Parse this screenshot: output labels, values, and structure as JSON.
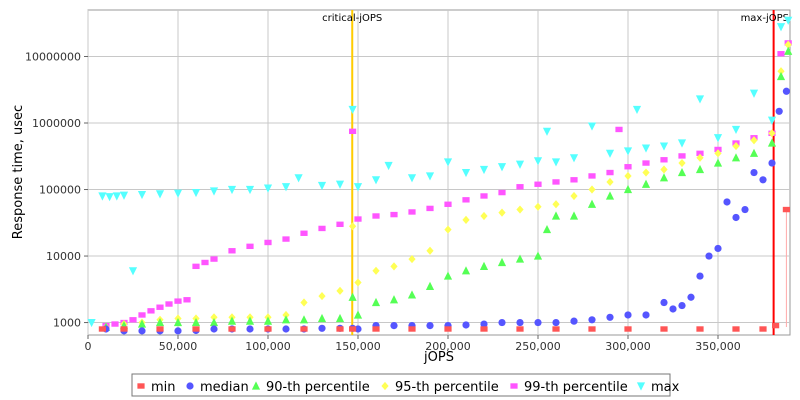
{
  "chart_data": {
    "type": "scatter",
    "title": "",
    "xlabel": "jOPS",
    "ylabel": "Response time, usec",
    "xlim": [
      0,
      390000
    ],
    "ylim": [
      650,
      50000000
    ],
    "yscale": "log",
    "grid": true,
    "legend_position": "bottom",
    "x_ticks": [
      {
        "value": 0,
        "label": "0"
      },
      {
        "value": 50000,
        "label": "50,000"
      },
      {
        "value": 100000,
        "label": "100,000"
      },
      {
        "value": 150000,
        "label": "150,000"
      },
      {
        "value": 200000,
        "label": "200,000"
      },
      {
        "value": 250000,
        "label": "250,000"
      },
      {
        "value": 300000,
        "label": "300,000"
      },
      {
        "value": 350000,
        "label": "350,000"
      }
    ],
    "y_ticks": [
      {
        "value": 1000,
        "label": "1000"
      },
      {
        "value": 10000,
        "label": "10000"
      },
      {
        "value": 100000,
        "label": "100000"
      },
      {
        "value": 1000000,
        "label": "1000000"
      },
      {
        "value": 10000000,
        "label": "10000000"
      }
    ],
    "vlines": [
      {
        "x": 146800,
        "label": "critical-jOPS",
        "color": "#ffcc00"
      },
      {
        "x": 380900,
        "label": "max-jOPS",
        "color": "#ff0000"
      }
    ],
    "colors": {
      "min": "#ff5555",
      "median": "#5555ff",
      "p90": "#55ff55",
      "p95": "#ffff55",
      "p99": "#ff55ff",
      "max": "#55ffff",
      "grid": "#c0c0c0"
    },
    "series": [
      {
        "name": "min",
        "shape": "square",
        "color": "#ff5555",
        "x": [
          8000,
          20000,
          40000,
          60000,
          80000,
          100000,
          120000,
          140000,
          147000,
          160000,
          180000,
          200000,
          220000,
          240000,
          260000,
          280000,
          300000,
          320000,
          340000,
          360000,
          375000,
          382000,
          388000
        ],
        "y": [
          800,
          800,
          800,
          800,
          800,
          800,
          800,
          800,
          800,
          800,
          800,
          800,
          800,
          800,
          800,
          800,
          800,
          800,
          800,
          800,
          800,
          900,
          50000
        ]
      },
      {
        "name": "median",
        "shape": "circle",
        "color": "#5555ff",
        "x": [
          10000,
          20000,
          30000,
          40000,
          50000,
          60000,
          70000,
          80000,
          90000,
          100000,
          110000,
          120000,
          130000,
          140000,
          147000,
          150000,
          160000,
          170000,
          180000,
          190000,
          200000,
          210000,
          220000,
          230000,
          240000,
          250000,
          260000,
          270000,
          280000,
          290000,
          300000,
          310000,
          320000,
          325000,
          330000,
          335000,
          340000,
          345000,
          350000,
          355000,
          360000,
          365000,
          370000,
          375000,
          380000,
          384000,
          388000
        ],
        "y": [
          800,
          750,
          750,
          750,
          750,
          760,
          800,
          800,
          800,
          800,
          800,
          800,
          820,
          820,
          820,
          800,
          900,
          900,
          900,
          900,
          900,
          920,
          950,
          1000,
          1000,
          1000,
          1000,
          1050,
          1100,
          1200,
          1300,
          1300,
          2000,
          1600,
          1800,
          2400,
          5000,
          10000,
          13000,
          65000,
          38000,
          50000,
          180000,
          140000,
          250000,
          1500000,
          3000000
        ]
      },
      {
        "name": "90-th percentile",
        "shape": "triangle-up",
        "color": "#55ff55",
        "x": [
          10000,
          20000,
          30000,
          40000,
          50000,
          60000,
          70000,
          80000,
          90000,
          100000,
          110000,
          120000,
          130000,
          140000,
          147000,
          150000,
          160000,
          170000,
          180000,
          190000,
          200000,
          210000,
          220000,
          230000,
          240000,
          250000,
          255000,
          260000,
          270000,
          280000,
          290000,
          300000,
          310000,
          320000,
          330000,
          340000,
          350000,
          360000,
          370000,
          380000,
          385000,
          389000
        ],
        "y": [
          850,
          900,
          950,
          1000,
          1000,
          1000,
          1000,
          1050,
          1050,
          1050,
          1100,
          1100,
          1150,
          1150,
          2400,
          1300,
          2000,
          2200,
          2600,
          3500,
          5000,
          6000,
          7000,
          8000,
          9000,
          10000,
          25000,
          40000,
          40000,
          60000,
          80000,
          100000,
          120000,
          150000,
          180000,
          200000,
          250000,
          300000,
          350000,
          500000,
          5000000,
          12000000
        ]
      },
      {
        "name": "95-th percentile",
        "shape": "diamond",
        "color": "#ffff55",
        "x": [
          10000,
          20000,
          30000,
          40000,
          50000,
          60000,
          70000,
          80000,
          90000,
          100000,
          110000,
          120000,
          130000,
          140000,
          147000,
          150000,
          160000,
          170000,
          180000,
          190000,
          200000,
          210000,
          220000,
          230000,
          240000,
          250000,
          260000,
          270000,
          280000,
          290000,
          300000,
          310000,
          320000,
          330000,
          340000,
          350000,
          360000,
          370000,
          380000,
          385000,
          389000
        ],
        "y": [
          850,
          950,
          1000,
          1100,
          1150,
          1150,
          1200,
          1200,
          1200,
          1200,
          1300,
          2000,
          2500,
          3000,
          28000,
          4000,
          6000,
          7000,
          9000,
          12000,
          25000,
          35000,
          40000,
          45000,
          50000,
          55000,
          60000,
          80000,
          100000,
          130000,
          160000,
          180000,
          200000,
          250000,
          300000,
          350000,
          450000,
          550000,
          700000,
          6000000,
          15000000
        ]
      },
      {
        "name": "99-th percentile",
        "shape": "square",
        "color": "#ff55ff",
        "x": [
          10000,
          15000,
          20000,
          25000,
          30000,
          35000,
          40000,
          45000,
          50000,
          55000,
          60000,
          65000,
          70000,
          80000,
          90000,
          100000,
          110000,
          120000,
          130000,
          140000,
          147000,
          150000,
          160000,
          170000,
          180000,
          190000,
          200000,
          210000,
          220000,
          230000,
          240000,
          250000,
          260000,
          270000,
          280000,
          290000,
          295000,
          300000,
          310000,
          320000,
          330000,
          340000,
          350000,
          360000,
          370000,
          380000,
          385000,
          389000
        ],
        "y": [
          900,
          950,
          1000,
          1100,
          1300,
          1500,
          1700,
          1900,
          2100,
          2200,
          7000,
          8000,
          9000,
          12000,
          14000,
          16000,
          18000,
          22000,
          26000,
          30000,
          750000,
          36000,
          40000,
          42000,
          46000,
          52000,
          60000,
          70000,
          80000,
          90000,
          110000,
          120000,
          130000,
          140000,
          160000,
          180000,
          800000,
          220000,
          250000,
          280000,
          320000,
          350000,
          400000,
          500000,
          600000,
          700000,
          11000000,
          16000000
        ]
      },
      {
        "name": "max",
        "shape": "triangle-down",
        "color": "#55ffff",
        "x": [
          2000,
          8000,
          12000,
          16000,
          20000,
          25000,
          30000,
          40000,
          50000,
          60000,
          70000,
          80000,
          90000,
          100000,
          110000,
          117000,
          130000,
          140000,
          147000,
          150000,
          160000,
          167000,
          180000,
          190000,
          200000,
          210000,
          220000,
          230000,
          240000,
          250000,
          255000,
          260000,
          270000,
          280000,
          290000,
          300000,
          305000,
          310000,
          320000,
          330000,
          340000,
          350000,
          360000,
          370000,
          380000,
          385000,
          389000
        ],
        "y": [
          1000,
          80000,
          78000,
          80000,
          82000,
          6000,
          84000,
          86000,
          88000,
          90000,
          95000,
          100000,
          100000,
          105000,
          110000,
          150000,
          115000,
          120000,
          1600000,
          110000,
          140000,
          230000,
          150000,
          160000,
          260000,
          180000,
          200000,
          220000,
          240000,
          270000,
          750000,
          260000,
          300000,
          900000,
          350000,
          380000,
          1600000,
          420000,
          450000,
          500000,
          2300000,
          600000,
          800000,
          2800000,
          1100000,
          28000000,
          35000000
        ]
      }
    ]
  },
  "legend": {
    "items": [
      {
        "key": "min",
        "label": "min"
      },
      {
        "key": "median",
        "label": "median"
      },
      {
        "key": "p90",
        "label": "90-th percentile"
      },
      {
        "key": "p95",
        "label": "95-th percentile"
      },
      {
        "key": "p99",
        "label": "99-th percentile"
      },
      {
        "key": "max",
        "label": "max"
      }
    ]
  }
}
